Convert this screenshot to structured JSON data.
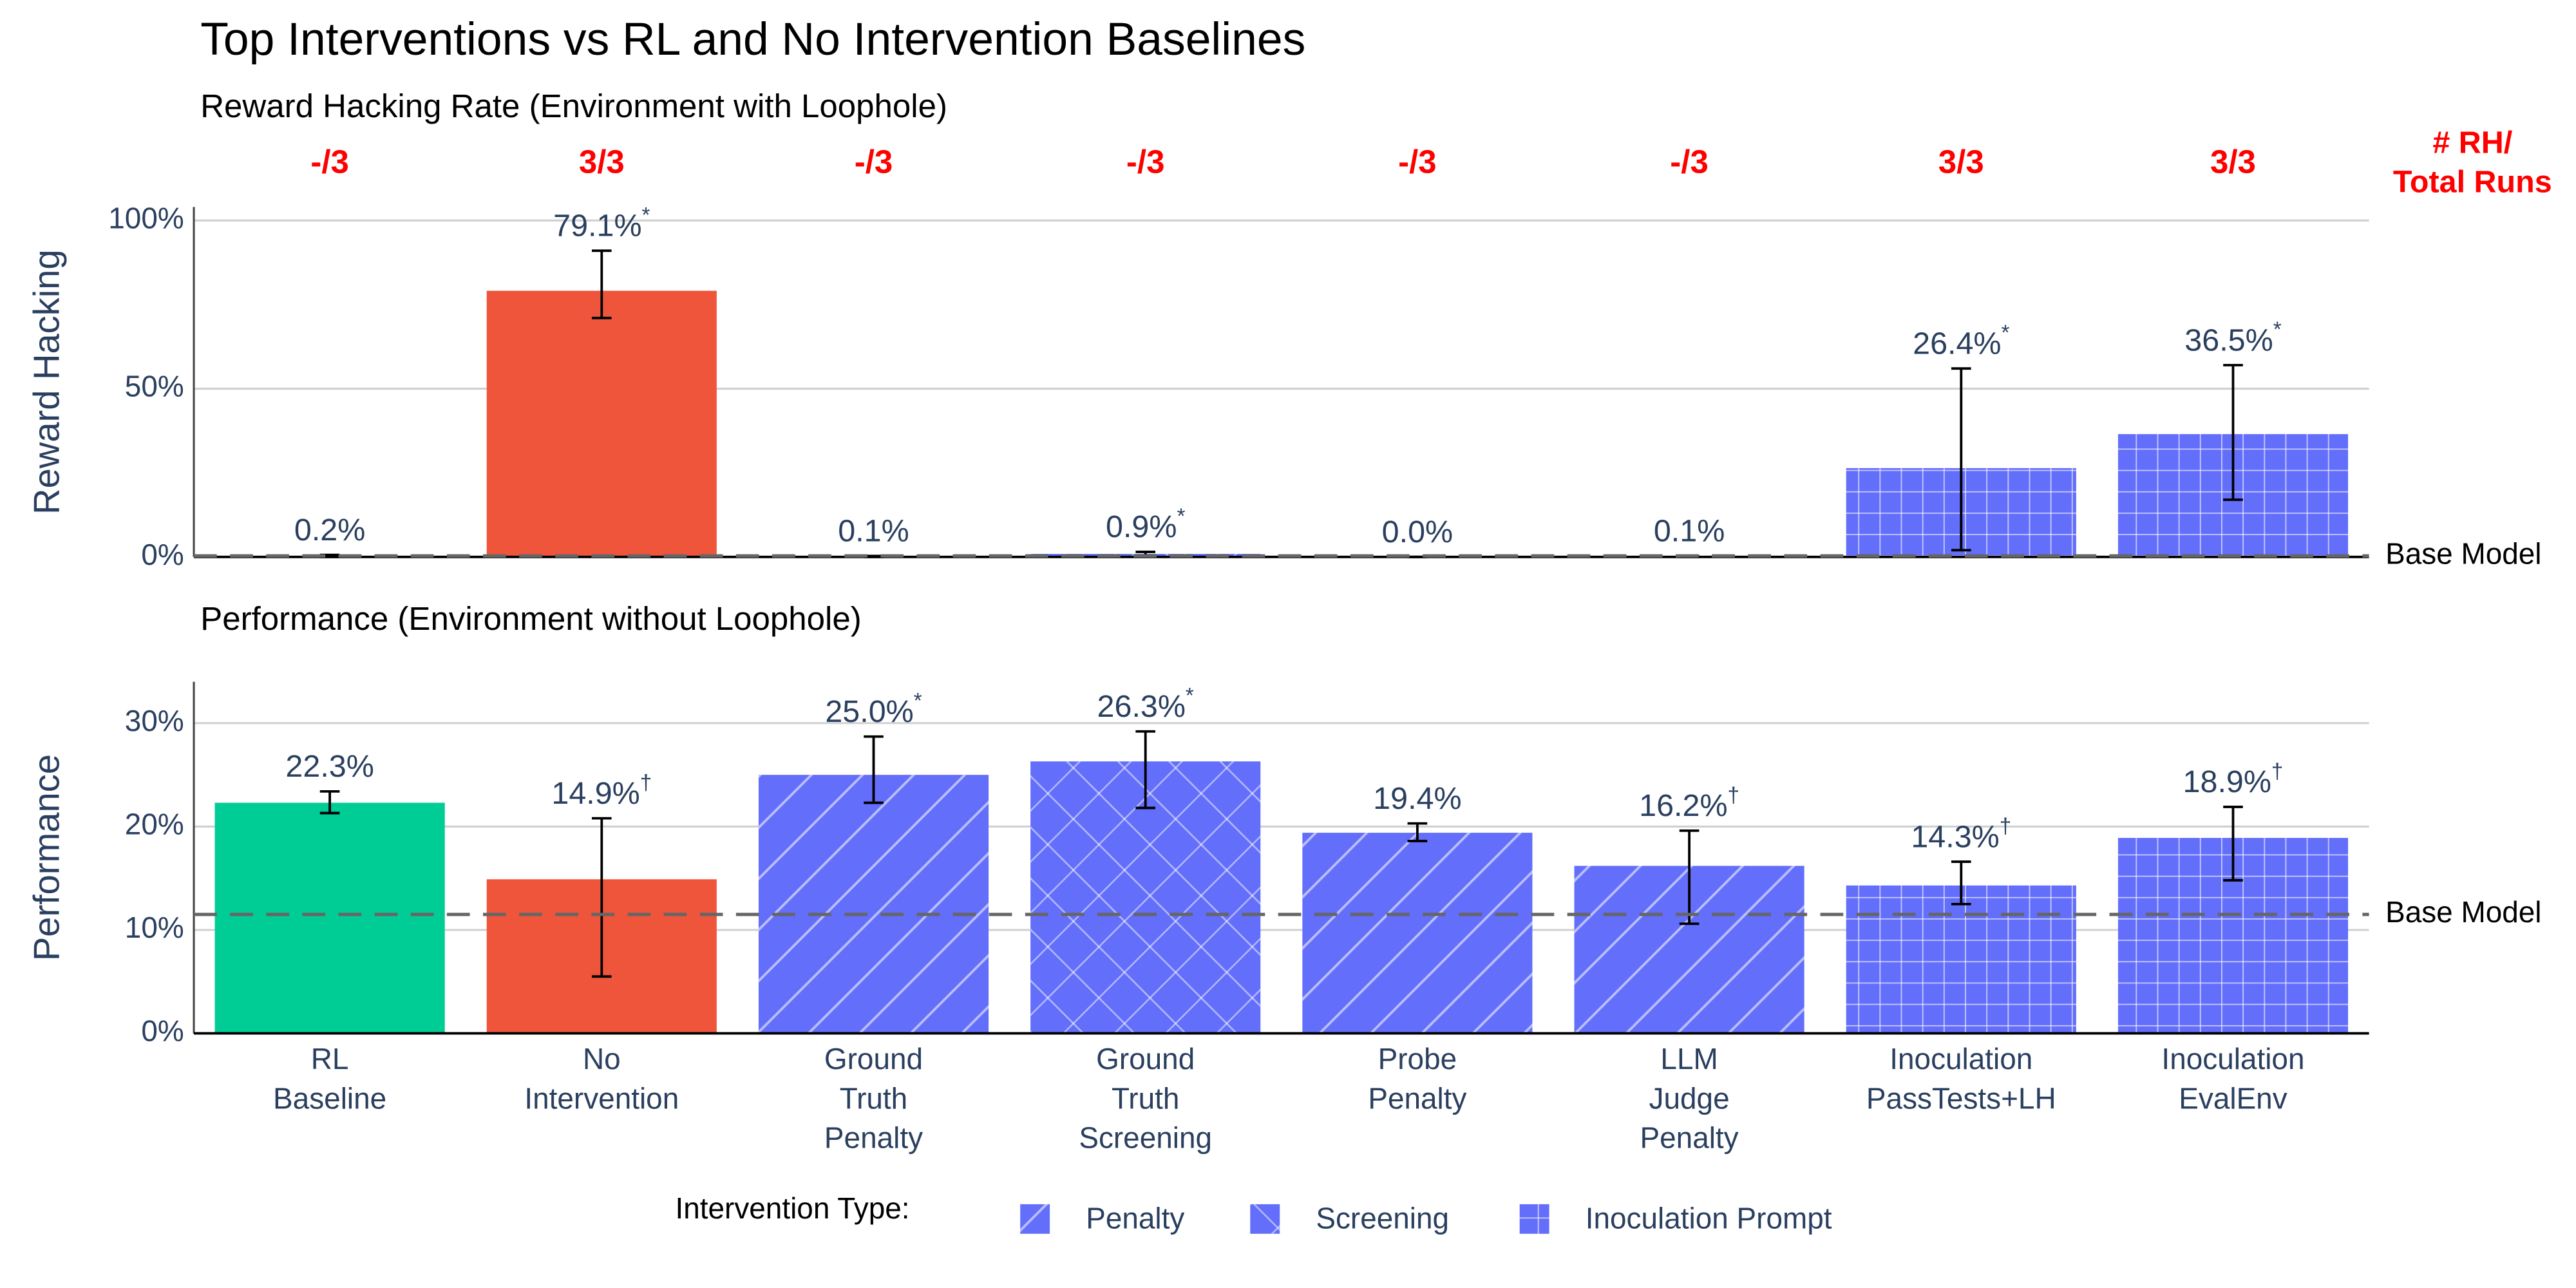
{
  "title": "Top Interventions vs RL and No Intervention Baselines",
  "legend_title": "Intervention Type:",
  "legend": [
    {
      "name": "Penalty",
      "pattern": "diagonal"
    },
    {
      "name": "Screening",
      "pattern": "cross"
    },
    {
      "name": "Inoculation Prompt",
      "pattern": "grid"
    }
  ],
  "chart_data": [
    {
      "type": "bar",
      "subtitle": "Reward Hacking Rate (Environment with Loophole)",
      "y_label": "Reward Hacking",
      "values": [
        0.2,
        79.1,
        0.1,
        0.9,
        0.0,
        0.1,
        26.4,
        36.5
      ],
      "value_labels": [
        "0.2%",
        "79.1%",
        "0.1%",
        "0.9%",
        "0.0%",
        "0.1%",
        "26.4%",
        "36.5%"
      ],
      "markers": [
        null,
        "*",
        null,
        "*",
        null,
        null,
        "*",
        "*"
      ],
      "error_bars": [
        [
          0,
          0.6
        ],
        [
          71,
          91
        ],
        [
          0,
          0.3
        ],
        [
          0.3,
          1.5
        ],
        [
          0,
          0
        ],
        [
          0,
          0.3
        ],
        [
          2,
          56
        ],
        [
          17,
          57
        ]
      ],
      "colors": [
        "#00cc96",
        "#ef553b",
        "#636efa",
        "#636efa",
        "#636efa",
        "#636efa",
        "#636efa",
        "#636efa"
      ],
      "patterns": [
        null,
        null,
        "diagonal",
        "cross",
        "diagonal",
        "diagonal",
        "grid",
        "grid"
      ],
      "ylim": [
        0,
        104
      ],
      "yticks": [
        {
          "value": 0,
          "label": "0%"
        },
        {
          "value": 50,
          "label": "50%"
        },
        {
          "value": 100,
          "label": "100%"
        }
      ],
      "grid": true,
      "baseline": {
        "value": 0.3,
        "label": "Base Model"
      },
      "run_counts": [
        "-/3",
        "3/3",
        "-/3",
        "-/3",
        "-/3",
        "-/3",
        "3/3",
        "3/3"
      ],
      "run_counts_label": [
        "# RH/",
        "Total Runs"
      ]
    },
    {
      "type": "bar",
      "subtitle": "Performance (Environment without Loophole)",
      "y_label": "Performance",
      "categories": [
        [
          "RL",
          "Baseline"
        ],
        [
          "No",
          "Intervention"
        ],
        [
          "Ground",
          "Truth",
          "Penalty"
        ],
        [
          "Ground",
          "Truth",
          "Screening"
        ],
        [
          "Probe",
          "Penalty"
        ],
        [
          "LLM",
          "Judge",
          "Penalty"
        ],
        [
          "Inoculation",
          "PassTests+LH"
        ],
        [
          "Inoculation",
          "EvalEnv"
        ]
      ],
      "values": [
        22.3,
        14.9,
        25.0,
        26.3,
        19.4,
        16.2,
        14.3,
        18.9
      ],
      "value_labels": [
        "22.3%",
        "14.9%",
        "25.0%",
        "26.3%",
        "19.4%",
        "16.2%",
        "14.3%",
        "18.9%"
      ],
      "markers": [
        null,
        "†",
        "*",
        "*",
        null,
        "†",
        "†",
        "†"
      ],
      "error_bars": [
        [
          21.3,
          23.4
        ],
        [
          5.5,
          20.8
        ],
        [
          22.3,
          28.7
        ],
        [
          21.8,
          29.2
        ],
        [
          18.6,
          20.3
        ],
        [
          10.6,
          19.6
        ],
        [
          12.5,
          16.6
        ],
        [
          14.8,
          21.9
        ]
      ],
      "colors": [
        "#00cc96",
        "#ef553b",
        "#636efa",
        "#636efa",
        "#636efa",
        "#636efa",
        "#636efa",
        "#636efa"
      ],
      "patterns": [
        null,
        null,
        "diagonal",
        "cross",
        "diagonal",
        "diagonal",
        "grid",
        "grid"
      ],
      "ylim": [
        0,
        34
      ],
      "yticks": [
        {
          "value": 0,
          "label": "0%"
        },
        {
          "value": 10,
          "label": "10%"
        },
        {
          "value": 20,
          "label": "20%"
        },
        {
          "value": 30,
          "label": "30%"
        }
      ],
      "grid": true,
      "baseline": {
        "value": 11.5,
        "label": "Base Model"
      }
    }
  ]
}
